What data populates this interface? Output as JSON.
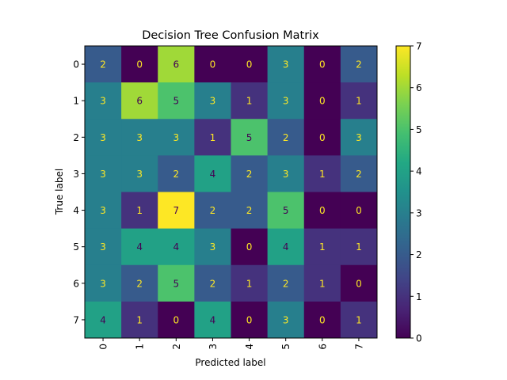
{
  "chart_data": {
    "type": "heatmap",
    "title": "Decision Tree Confusion Matrix",
    "xlabel": "Predicted label",
    "ylabel": "True label",
    "x_categories": [
      "0",
      "1",
      "2",
      "3",
      "4",
      "5",
      "6",
      "7"
    ],
    "y_categories": [
      "0",
      "1",
      "2",
      "3",
      "4",
      "5",
      "6",
      "7"
    ],
    "values": [
      [
        2,
        0,
        6,
        0,
        0,
        3,
        0,
        2
      ],
      [
        3,
        6,
        5,
        3,
        1,
        3,
        0,
        1
      ],
      [
        3,
        3,
        3,
        1,
        5,
        2,
        0,
        3
      ],
      [
        3,
        3,
        2,
        4,
        2,
        3,
        1,
        2
      ],
      [
        3,
        1,
        7,
        2,
        2,
        5,
        0,
        0
      ],
      [
        3,
        4,
        4,
        3,
        0,
        4,
        1,
        1
      ],
      [
        3,
        2,
        5,
        2,
        1,
        2,
        1,
        0
      ],
      [
        4,
        1,
        0,
        4,
        0,
        3,
        0,
        1
      ]
    ],
    "colormap": "viridis",
    "vmin": 0,
    "vmax": 7,
    "colorbar_ticks": [
      "0",
      "1",
      "2",
      "3",
      "4",
      "5",
      "6",
      "7"
    ],
    "x_tick_rotation": "vertical"
  }
}
